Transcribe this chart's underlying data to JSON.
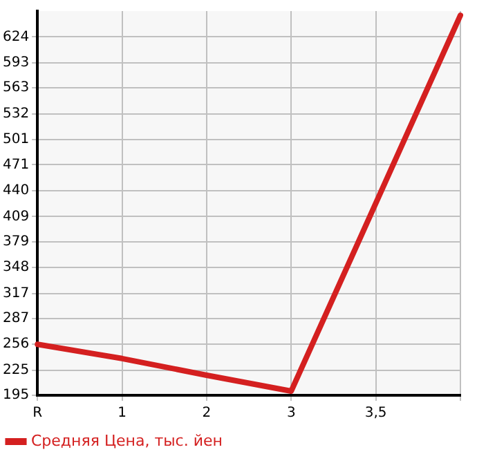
{
  "chart_data": {
    "type": "line",
    "categories": [
      "R",
      "1",
      "2",
      "3",
      "3,5",
      null
    ],
    "series": [
      {
        "name": "Средняя Цена, тыс. йен",
        "color": "#d42020",
        "values": [
          256,
          239,
          219,
          200,
          null,
          650
        ]
      }
    ],
    "ylim": [
      195,
      655
    ],
    "yticks": [
      195,
      225,
      256,
      287,
      317,
      348,
      379,
      409,
      440,
      471,
      501,
      532,
      563,
      593,
      624
    ],
    "grid": true,
    "legend": "bottom left",
    "marker": "none"
  }
}
